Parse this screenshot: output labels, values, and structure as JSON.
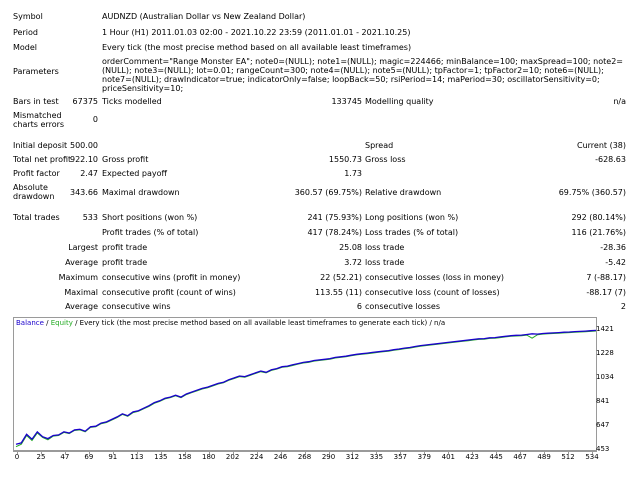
{
  "report": {
    "symbol_label": "Symbol",
    "symbol_value": "AUDNZD (Australian Dollar vs New Zealand Dollar)",
    "period_label": "Period",
    "period_value": "1 Hour (H1) 2011.01.03 02:00 - 2021.10.22 23:59 (2011.01.01 - 2021.10.25)",
    "model_label": "Model",
    "model_value": "Every tick (the most precise method based on all available least timeframes)",
    "parameters_label": "Parameters",
    "parameters_value": "orderComment=\"Range Monster EA\"; note0=(NULL); note1=(NULL); magic=224466; minBalance=100; maxSpread=100; note2=(NULL); note3=(NULL); lot=0.01; rangeCount=300; note4=(NULL); note5=(NULL); tpFactor=1; tpFactor2=10; note6=(NULL); note7=(NULL); drawIndicator=true; indicatorOnly=false; loopBack=50; rsiPeriod=14; maPeriod=30; oscillatorSensitivity=0; priceSensitivity=10;",
    "bars_label": "Bars in test",
    "bars_value": "67375",
    "ticks_label": "Ticks modelled",
    "ticks_value": "133745",
    "quality_label": "Modelling quality",
    "quality_value": "n/a",
    "mismatch_label": "Mismatched charts errors",
    "mismatch_value": "0",
    "deposit_label": "Initial deposit",
    "deposit_value": "500.00",
    "spread_label": "Spread",
    "spread_value": "Current (38)",
    "netprofit_label": "Total net profit",
    "netprofit_value": "922.10",
    "grossprofit_label": "Gross profit",
    "grossprofit_value": "1550.73",
    "grossloss_label": "Gross loss",
    "grossloss_value": "-628.63",
    "pf_label": "Profit factor",
    "pf_value": "2.47",
    "payoff_label": "Expected payoff",
    "payoff_value": "1.73",
    "absdd_label": "Absolute drawdown",
    "absdd_value": "343.66",
    "maxdd_label": "Maximal drawdown",
    "maxdd_value": "360.57 (69.75%)",
    "reldd_label": "Relative drawdown",
    "reldd_value": "69.75% (360.57)",
    "trades_label": "Total trades",
    "trades_value": "533",
    "short_label": "Short positions (won %)",
    "short_value": "241 (75.93%)",
    "long_label": "Long positions (won %)",
    "long_value": "292 (80.14%)",
    "proftrades_label": "Profit trades (% of total)",
    "proftrades_value": "417 (78.24%)",
    "losstrades_label": "Loss trades (% of total)",
    "losstrades_value": "116 (21.76%)",
    "largest_label": "Largest",
    "largest_profit_label": "profit trade",
    "largest_profit_value": "25.08",
    "largest_loss_label": "loss trade",
    "largest_loss_value": "-28.36",
    "average_label": "Average",
    "average_profit_label": "profit trade",
    "average_profit_value": "3.72",
    "average_loss_label": "loss trade",
    "average_loss_value": "-5.42",
    "maximum_label": "Maximum",
    "max_cw_label": "consecutive wins (profit in money)",
    "max_cw_value": "22 (52.21)",
    "max_cl_label": "consecutive losses (loss in money)",
    "max_cl_value": "7 (-88.17)",
    "maximal_label": "Maximal",
    "mxl_cp_label": "consecutive profit (count of wins)",
    "mxl_cp_value": "113.55 (11)",
    "mxl_cl_label": "consecutive loss (count of losses)",
    "mxl_cl_value": "-88.17 (7)",
    "avg2_label": "Average",
    "avg_cw_label": "consecutive wins",
    "avg_cw_value": "6",
    "avg_cl_label": "consecutive losses",
    "avg_cl_value": "2"
  },
  "chart_legend": {
    "balance": "Balance",
    "sep1": " / ",
    "equity": "Equity",
    "rest": " / Every tick (the most precise method based on all available least timeframes to generate each tick) / n/a"
  },
  "colors": {
    "balance": "#1a00cc",
    "equity": "#22aa22",
    "grid_axis": "#9a9a9a"
  },
  "chart_data": {
    "type": "line",
    "x_ticks": [
      "0",
      "25",
      "47",
      "69",
      "91",
      "113",
      "135",
      "158",
      "180",
      "202",
      "224",
      "246",
      "268",
      "290",
      "312",
      "335",
      "357",
      "379",
      "401",
      "423",
      "445",
      "467",
      "489",
      "512",
      "534"
    ],
    "y_ticks": [
      "1421",
      "1228",
      "1034",
      "841",
      "647",
      "453"
    ],
    "ylim": [
      453,
      1421
    ],
    "xlim": [
      0,
      545
    ],
    "series": [
      {
        "name": "Balance",
        "x": [
          0,
          5,
          10,
          15,
          20,
          25,
          30,
          35,
          40,
          45,
          50,
          55,
          60,
          65,
          70,
          75,
          80,
          85,
          90,
          95,
          100,
          105,
          110,
          115,
          120,
          125,
          130,
          135,
          140,
          145,
          150,
          155,
          160,
          165,
          170,
          175,
          180,
          185,
          190,
          195,
          200,
          205,
          210,
          215,
          220,
          225,
          230,
          235,
          240,
          245,
          250,
          255,
          260,
          265,
          270,
          275,
          280,
          285,
          290,
          295,
          300,
          305,
          310,
          315,
          320,
          325,
          330,
          335,
          340,
          345,
          350,
          355,
          360,
          365,
          370,
          375,
          380,
          385,
          390,
          395,
          400,
          405,
          410,
          415,
          420,
          425,
          430,
          435,
          440,
          445,
          450,
          455,
          460,
          465,
          470,
          475,
          480,
          485,
          490,
          495,
          500,
          505,
          510,
          515,
          520,
          525,
          530,
          535,
          540,
          545
        ],
        "y": [
          500,
          510,
          580,
          540,
          600,
          560,
          545,
          570,
          575,
          600,
          590,
          615,
          620,
          605,
          640,
          645,
          670,
          680,
          700,
          720,
          745,
          730,
          760,
          770,
          790,
          810,
          835,
          850,
          870,
          880,
          895,
          880,
          905,
          920,
          935,
          950,
          960,
          975,
          990,
          1000,
          1020,
          1035,
          1050,
          1045,
          1060,
          1075,
          1090,
          1080,
          1100,
          1110,
          1125,
          1130,
          1140,
          1150,
          1160,
          1165,
          1175,
          1180,
          1185,
          1190,
          1200,
          1205,
          1210,
          1218,
          1225,
          1230,
          1235,
          1240,
          1245,
          1250,
          1255,
          1262,
          1268,
          1275,
          1280,
          1288,
          1295,
          1300,
          1305,
          1310,
          1315,
          1320,
          1325,
          1330,
          1335,
          1340,
          1345,
          1350,
          1352,
          1358,
          1360,
          1365,
          1370,
          1375,
          1378,
          1380,
          1385,
          1390,
          1388,
          1393,
          1395,
          1398,
          1400,
          1403,
          1405,
          1408,
          1410,
          1412,
          1415,
          1418
        ]
      },
      {
        "name": "Equity",
        "x": [
          0,
          5,
          10,
          15,
          20,
          25,
          30,
          35,
          40,
          45,
          50,
          55,
          60,
          65,
          70,
          75,
          80,
          85,
          90,
          95,
          100,
          105,
          110,
          115,
          120,
          125,
          130,
          135,
          140,
          145,
          150,
          155,
          160,
          165,
          170,
          175,
          180,
          185,
          190,
          195,
          200,
          205,
          210,
          215,
          220,
          225,
          230,
          235,
          240,
          245,
          250,
          255,
          260,
          265,
          270,
          275,
          280,
          285,
          290,
          295,
          300,
          305,
          310,
          315,
          320,
          325,
          330,
          335,
          340,
          345,
          350,
          355,
          360,
          365,
          370,
          375,
          380,
          385,
          390,
          395,
          400,
          405,
          410,
          415,
          420,
          425,
          430,
          435,
          440,
          445,
          450,
          455,
          460,
          465,
          470,
          475,
          480,
          485,
          490,
          495,
          500,
          505,
          510,
          515,
          520,
          525,
          530,
          535,
          540,
          545
        ],
        "y": [
          480,
          500,
          570,
          530,
          590,
          555,
          535,
          565,
          570,
          595,
          585,
          610,
          615,
          600,
          635,
          640,
          665,
          675,
          695,
          715,
          740,
          725,
          755,
          765,
          785,
          805,
          830,
          845,
          865,
          875,
          890,
          875,
          900,
          915,
          930,
          945,
          955,
          970,
          985,
          995,
          1015,
          1030,
          1045,
          1040,
          1055,
          1070,
          1085,
          1075,
          1095,
          1105,
          1120,
          1125,
          1135,
          1145,
          1155,
          1160,
          1170,
          1175,
          1180,
          1185,
          1195,
          1200,
          1205,
          1213,
          1220,
          1225,
          1230,
          1235,
          1240,
          1245,
          1250,
          1257,
          1263,
          1270,
          1275,
          1283,
          1290,
          1295,
          1300,
          1305,
          1310,
          1315,
          1320,
          1325,
          1330,
          1335,
          1340,
          1345,
          1347,
          1353,
          1355,
          1360,
          1365,
          1370,
          1373,
          1375,
          1380,
          1355,
          1383,
          1388,
          1390,
          1393,
          1395,
          1398,
          1400,
          1403,
          1405,
          1407,
          1410,
          1413
        ]
      }
    ]
  }
}
